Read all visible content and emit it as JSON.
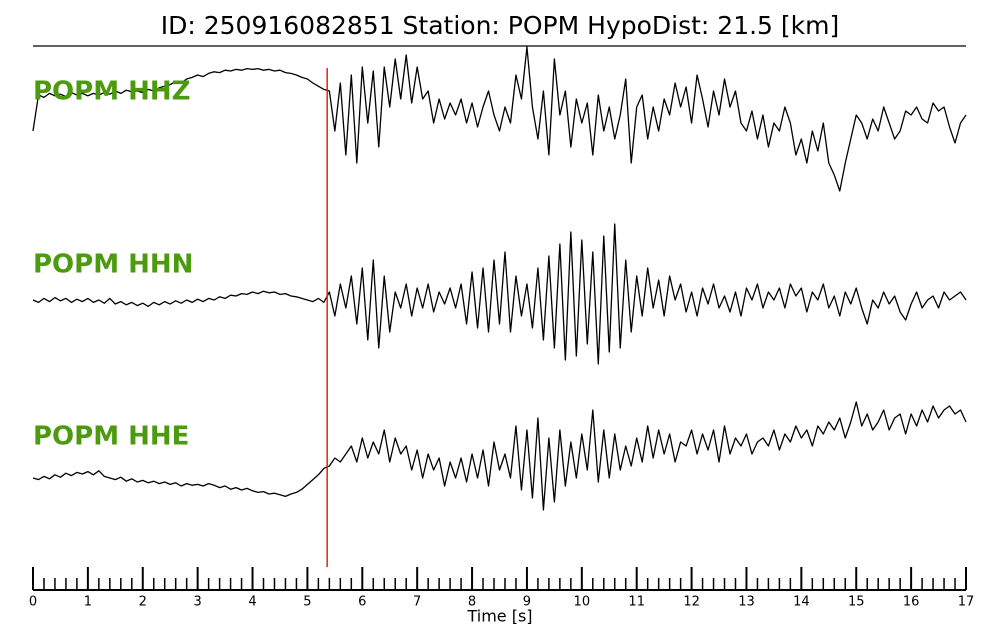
{
  "chart_data": {
    "type": "line",
    "title": "ID: 250916082851   Station: POPM   HypoDist:    21.5 [km]",
    "xlabel": "Time [s]",
    "xlim": [
      0,
      17
    ],
    "xticks": [
      0,
      1,
      2,
      3,
      4,
      5,
      6,
      7,
      8,
      9,
      10,
      11,
      12,
      13,
      14,
      15,
      16,
      17
    ],
    "minor_per_major": 5,
    "pick": {
      "x": 5.36,
      "color": "#e3201b"
    },
    "label_color": "#4c9a0e",
    "x": [
      0,
      0.1,
      0.2,
      0.3,
      0.4,
      0.5,
      0.6,
      0.7,
      0.8,
      0.9,
      1,
      1.1,
      1.2,
      1.3,
      1.4,
      1.5,
      1.6,
      1.7,
      1.8,
      1.9,
      2,
      2.1,
      2.2,
      2.3,
      2.4,
      2.5,
      2.6,
      2.7,
      2.8,
      2.9,
      3,
      3.1,
      3.2,
      3.3,
      3.4,
      3.5,
      3.6,
      3.7,
      3.8,
      3.9,
      4,
      4.1,
      4.2,
      4.3,
      4.4,
      4.5,
      4.6,
      4.7,
      4.8,
      4.9,
      5,
      5.1,
      5.2,
      5.3,
      5.4,
      5.5,
      5.6,
      5.7,
      5.8,
      5.9,
      6,
      6.1,
      6.2,
      6.3,
      6.4,
      6.5,
      6.6,
      6.7,
      6.8,
      6.9,
      7,
      7.1,
      7.2,
      7.3,
      7.4,
      7.5,
      7.6,
      7.7,
      7.8,
      7.9,
      8,
      8.1,
      8.2,
      8.3,
      8.4,
      8.5,
      8.6,
      8.7,
      8.8,
      8.9,
      9,
      9.1,
      9.2,
      9.3,
      9.4,
      9.5,
      9.6,
      9.7,
      9.8,
      9.9,
      10,
      10.1,
      10.2,
      10.3,
      10.4,
      10.5,
      10.6,
      10.7,
      10.8,
      10.9,
      11,
      11.1,
      11.2,
      11.3,
      11.4,
      11.5,
      11.6,
      11.7,
      11.8,
      11.9,
      12,
      12.1,
      12.2,
      12.3,
      12.4,
      12.5,
      12.6,
      12.7,
      12.8,
      12.9,
      13,
      13.1,
      13.2,
      13.3,
      13.4,
      13.5,
      13.6,
      13.7,
      13.8,
      13.9,
      14,
      14.1,
      14.2,
      14.3,
      14.4,
      14.5,
      14.6,
      14.7,
      14.8,
      14.9,
      15,
      15.1,
      15.2,
      15.3,
      15.4,
      15.5,
      15.6,
      15.7,
      15.8,
      15.9,
      16,
      16.1,
      16.2,
      16.3,
      16.4,
      16.5,
      16.6,
      16.7,
      16.8,
      16.9,
      17
    ],
    "series": [
      {
        "name": "POPM HHZ",
        "color": "#000000",
        "values": [
          -0.2,
          0.25,
          0.22,
          0.27,
          0.24,
          0.26,
          0.23,
          0.28,
          0.25,
          0.27,
          0.24,
          0.27,
          0.25,
          0.28,
          0.26,
          0.3,
          0.27,
          0.31,
          0.29,
          0.3,
          0.28,
          0.32,
          0.3,
          0.34,
          0.36,
          0.38,
          0.42,
          0.4,
          0.45,
          0.47,
          0.5,
          0.48,
          0.52,
          0.54,
          0.53,
          0.56,
          0.55,
          0.57,
          0.56,
          0.58,
          0.57,
          0.58,
          0.56,
          0.57,
          0.55,
          0.56,
          0.53,
          0.52,
          0.5,
          0.47,
          0.45,
          0.4,
          0.36,
          0.32,
          0.3,
          -0.2,
          0.4,
          -0.5,
          0.5,
          -0.6,
          0.6,
          -0.1,
          0.55,
          -0.4,
          0.6,
          0.1,
          0.7,
          0.2,
          0.75,
          0.15,
          0.6,
          0.2,
          0.3,
          -0.1,
          0.2,
          -0.05,
          0.15,
          0.0,
          0.2,
          -0.1,
          0.15,
          -0.15,
          0.1,
          0.3,
          0.0,
          -0.2,
          0.1,
          -0.1,
          0.5,
          0.2,
          0.85,
          0.1,
          -0.3,
          0.3,
          -0.5,
          0.7,
          0.0,
          0.3,
          -0.4,
          0.2,
          -0.1,
          0.15,
          -0.5,
          0.25,
          -0.2,
          0.1,
          -0.3,
          0.0,
          0.45,
          -0.6,
          0.1,
          0.25,
          -0.3,
          0.1,
          -0.2,
          0.2,
          0.0,
          0.4,
          0.1,
          0.35,
          -0.1,
          0.5,
          0.2,
          -0.15,
          0.3,
          0.0,
          0.45,
          0.1,
          0.3,
          -0.1,
          -0.2,
          0.05,
          -0.3,
          0.0,
          -0.4,
          -0.1,
          -0.2,
          0.1,
          -0.1,
          -0.5,
          -0.3,
          -0.6,
          -0.2,
          -0.45,
          -0.1,
          -0.6,
          -0.75,
          -0.95,
          -0.6,
          -0.3,
          0.0,
          -0.1,
          -0.3,
          -0.05,
          -0.2,
          0.1,
          -0.1,
          -0.3,
          -0.2,
          0.05,
          0.0,
          0.1,
          -0.05,
          -0.1,
          0.15,
          0.05,
          0.1,
          -0.15,
          -0.35,
          -0.1,
          0.0
        ]
      },
      {
        "name": "POPM HHN",
        "color": "#000000",
        "values": [
          0.0,
          -0.03,
          0.02,
          -0.02,
          0.03,
          -0.01,
          0.02,
          -0.03,
          0.01,
          -0.02,
          0.02,
          -0.03,
          0.0,
          -0.04,
          0.02,
          -0.05,
          -0.02,
          -0.06,
          -0.03,
          -0.07,
          -0.04,
          -0.08,
          -0.03,
          -0.06,
          -0.02,
          -0.05,
          -0.01,
          -0.04,
          0.0,
          -0.03,
          0.01,
          -0.02,
          0.02,
          0.0,
          0.04,
          0.02,
          0.06,
          0.05,
          0.08,
          0.07,
          0.1,
          0.08,
          0.11,
          0.09,
          0.1,
          0.07,
          0.08,
          0.05,
          0.04,
          0.02,
          0.0,
          -0.02,
          0.02,
          -0.03,
          0.1,
          -0.2,
          0.2,
          -0.1,
          0.3,
          -0.3,
          0.4,
          -0.5,
          0.5,
          -0.6,
          0.3,
          -0.4,
          0.1,
          -0.1,
          0.2,
          -0.2,
          0.15,
          -0.1,
          0.2,
          -0.15,
          0.1,
          -0.05,
          0.15,
          -0.1,
          0.2,
          -0.3,
          0.35,
          -0.35,
          0.4,
          -0.4,
          0.5,
          -0.3,
          0.6,
          -0.4,
          0.3,
          -0.2,
          0.2,
          -0.35,
          0.4,
          -0.5,
          0.55,
          -0.6,
          0.7,
          -0.75,
          0.85,
          -0.7,
          0.75,
          -0.55,
          0.6,
          -0.8,
          0.8,
          -0.65,
          0.95,
          -0.6,
          0.5,
          -0.4,
          0.3,
          -0.2,
          0.4,
          -0.1,
          0.25,
          -0.2,
          0.3,
          0.0,
          0.2,
          -0.15,
          0.1,
          -0.2,
          0.15,
          -0.05,
          0.2,
          -0.1,
          0.05,
          -0.15,
          0.1,
          -0.2,
          0.15,
          0.0,
          0.2,
          -0.1,
          0.1,
          0.0,
          0.15,
          -0.1,
          0.2,
          0.05,
          0.15,
          -0.15,
          0.1,
          0.0,
          0.2,
          -0.1,
          0.05,
          -0.2,
          0.1,
          -0.05,
          0.15,
          -0.1,
          -0.3,
          0.0,
          -0.1,
          0.1,
          -0.05,
          0.05,
          -0.15,
          -0.25,
          -0.05,
          0.1,
          -0.1,
          0.0,
          0.05,
          -0.1,
          0.1,
          0.0,
          0.05,
          0.1,
          0.0
        ]
      },
      {
        "name": "POPM HHE",
        "color": "#000000",
        "values": [
          -0.1,
          -0.12,
          -0.08,
          -0.11,
          -0.06,
          -0.09,
          -0.04,
          -0.07,
          -0.03,
          -0.05,
          -0.02,
          -0.06,
          -0.01,
          -0.08,
          -0.1,
          -0.12,
          -0.09,
          -0.14,
          -0.11,
          -0.15,
          -0.13,
          -0.16,
          -0.14,
          -0.17,
          -0.15,
          -0.18,
          -0.16,
          -0.2,
          -0.17,
          -0.19,
          -0.18,
          -0.2,
          -0.17,
          -0.19,
          -0.22,
          -0.2,
          -0.24,
          -0.22,
          -0.25,
          -0.23,
          -0.26,
          -0.28,
          -0.27,
          -0.3,
          -0.29,
          -0.31,
          -0.33,
          -0.3,
          -0.28,
          -0.24,
          -0.18,
          -0.12,
          -0.06,
          0.02,
          0.05,
          0.15,
          0.1,
          0.2,
          0.3,
          0.1,
          0.4,
          0.15,
          0.35,
          0.2,
          0.5,
          0.1,
          0.4,
          0.2,
          0.3,
          0.0,
          0.25,
          -0.1,
          0.2,
          0.0,
          0.15,
          -0.2,
          0.1,
          -0.1,
          0.15,
          -0.15,
          0.2,
          -0.1,
          0.25,
          -0.2,
          0.35,
          0.0,
          0.2,
          -0.1,
          0.55,
          -0.25,
          0.5,
          -0.35,
          0.65,
          -0.5,
          0.4,
          -0.4,
          0.5,
          -0.2,
          0.35,
          -0.1,
          0.45,
          0.0,
          0.75,
          -0.15,
          0.5,
          -0.1,
          0.45,
          0.0,
          0.3,
          0.05,
          0.4,
          0.1,
          0.55,
          0.15,
          0.5,
          0.2,
          0.45,
          0.1,
          0.35,
          0.3,
          0.5,
          0.2,
          0.45,
          0.25,
          0.5,
          0.1,
          0.55,
          0.2,
          0.4,
          0.3,
          0.45,
          0.2,
          0.35,
          0.4,
          0.3,
          0.5,
          0.25,
          0.45,
          0.35,
          0.55,
          0.4,
          0.5,
          0.3,
          0.55,
          0.45,
          0.6,
          0.5,
          0.65,
          0.4,
          0.6,
          0.85,
          0.55,
          0.7,
          0.5,
          0.6,
          0.75,
          0.5,
          0.65,
          0.7,
          0.45,
          0.7,
          0.55,
          0.75,
          0.6,
          0.8,
          0.65,
          0.75,
          0.8,
          0.7,
          0.75,
          0.6
        ]
      }
    ]
  }
}
